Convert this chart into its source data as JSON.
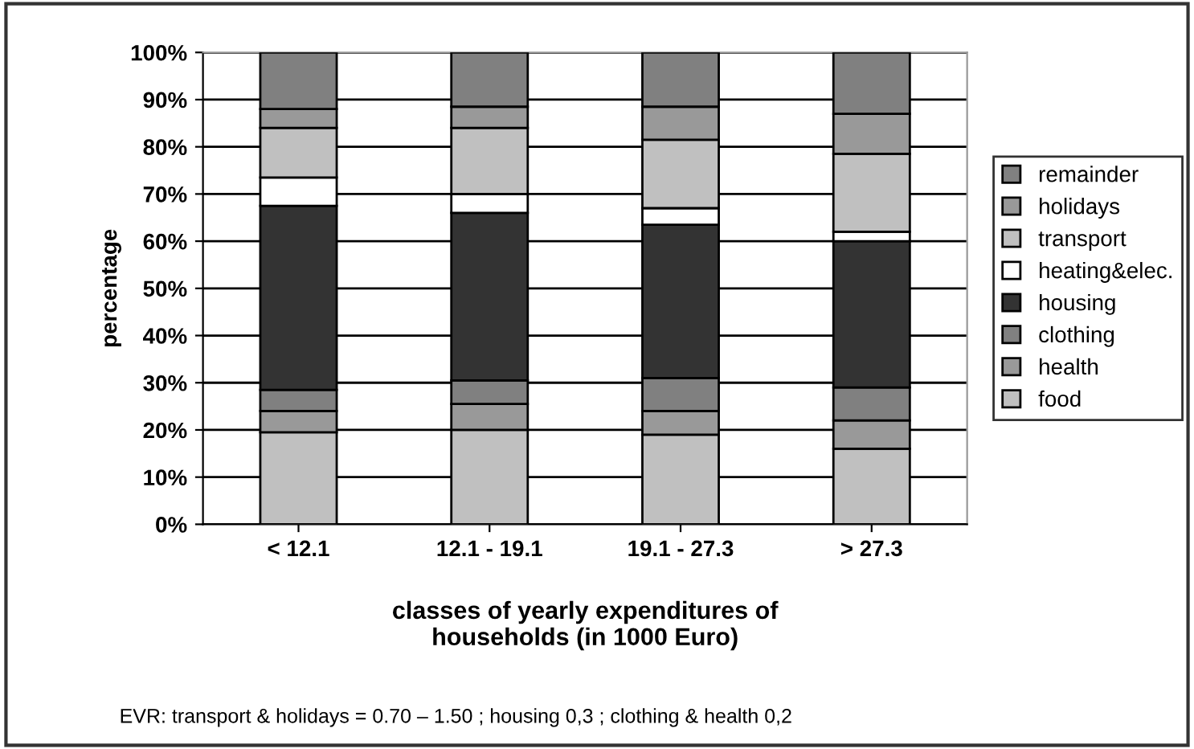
{
  "chart_data": {
    "type": "bar",
    "stacked": true,
    "xlabel": "classes of yearly expenditures of\nhouseholds (in 1000 Euro)",
    "ylabel": "percentage",
    "categories": [
      "< 12.1",
      "12.1 - 19.1",
      "19.1 - 27.3",
      "> 27.3"
    ],
    "series": [
      {
        "name": "food",
        "color": "#c0c0c0",
        "values": [
          19.5,
          20,
          19,
          16
        ]
      },
      {
        "name": "health",
        "color": "#999999",
        "values": [
          4.5,
          5.5,
          5,
          6
        ]
      },
      {
        "name": "clothing",
        "color": "#808080",
        "values": [
          4.5,
          5,
          7,
          7
        ]
      },
      {
        "name": "housing",
        "color": "#333333",
        "values": [
          39,
          35.5,
          32.5,
          31
        ]
      },
      {
        "name": "heating&elec.",
        "color": "#ffffff",
        "values": [
          6,
          4,
          3.5,
          2
        ]
      },
      {
        "name": "transport",
        "color": "#c0c0c0",
        "values": [
          10.5,
          14,
          14.5,
          16.5
        ]
      },
      {
        "name": "holidays",
        "color": "#999999",
        "values": [
          4,
          4.5,
          7,
          8.5
        ]
      },
      {
        "name": "remainder",
        "color": "#808080",
        "values": [
          12,
          11.5,
          11.5,
          13
        ]
      }
    ],
    "ylim": [
      0,
      100
    ],
    "yticks": [
      {
        "value": 0,
        "label": "0%"
      },
      {
        "value": 10,
        "label": "10%"
      },
      {
        "value": 20,
        "label": "20%"
      },
      {
        "value": 30,
        "label": "30%"
      },
      {
        "value": 40,
        "label": "40%"
      },
      {
        "value": 50,
        "label": "50%"
      },
      {
        "value": 60,
        "label": "60%"
      },
      {
        "value": 70,
        "label": "70%"
      },
      {
        "value": 80,
        "label": "80%"
      },
      {
        "value": 90,
        "label": "90%"
      },
      {
        "value": 100,
        "label": "100%"
      }
    ],
    "grid": "y",
    "legend": "right",
    "annotations": [
      "EVR: transport & holidays = 0.70 – 1.50 ; housing 0,3 ; clothing & health 0,2"
    ]
  }
}
